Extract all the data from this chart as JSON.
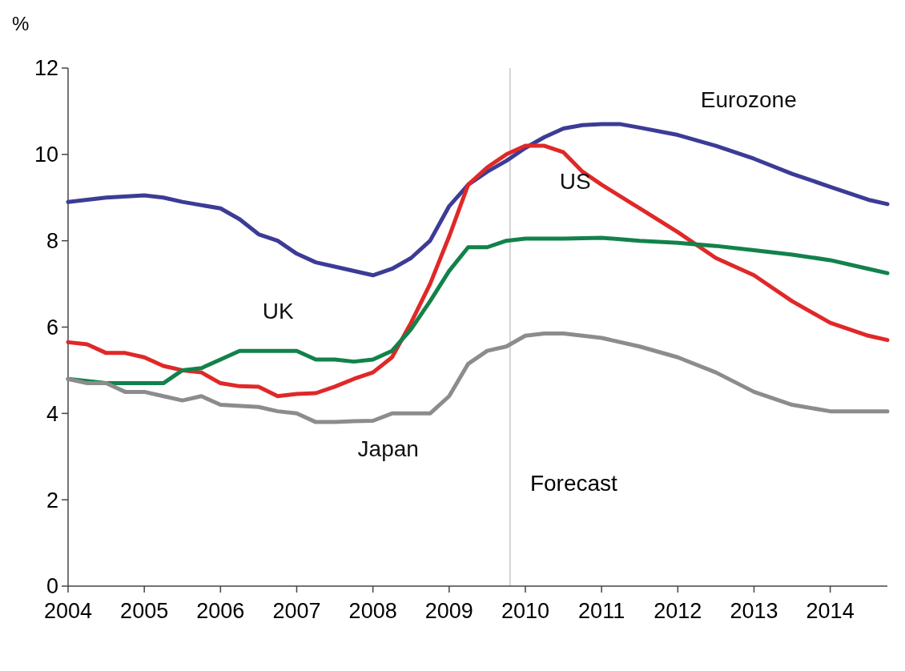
{
  "chart_data": {
    "type": "line",
    "ylabel": "%",
    "xlim": [
      2004,
      2014.75
    ],
    "xticks": [
      2004,
      2005,
      2006,
      2007,
      2008,
      2009,
      2010,
      2011,
      2012,
      2013,
      2014
    ],
    "ylim": [
      0,
      12
    ],
    "yticks": [
      0,
      2,
      4,
      6,
      8,
      10,
      12
    ],
    "grid": false,
    "legend": false,
    "marker": "none",
    "line_style": "solid",
    "ref_lines": [
      {
        "axis": "x",
        "value": 2009.8,
        "label": "Forecast",
        "color": "#c8c8c8"
      }
    ],
    "series": [
      {
        "name": "Eurozone",
        "color": "#3c3c96",
        "x": [
          2004,
          2004.5,
          2005,
          2005.25,
          2005.5,
          2006,
          2006.25,
          2006.5,
          2006.75,
          2007,
          2007.25,
          2007.5,
          2008,
          2008.25,
          2008.5,
          2008.75,
          2009,
          2009.25,
          2009.5,
          2009.75,
          2010,
          2010.25,
          2010.5,
          2010.75,
          2011,
          2011.25,
          2011.5,
          2012,
          2012.5,
          2013,
          2013.5,
          2014,
          2014.5,
          2014.75
        ],
        "values": [
          8.9,
          9.0,
          9.05,
          9.0,
          8.9,
          8.75,
          8.5,
          8.15,
          8.0,
          7.7,
          7.5,
          7.4,
          7.2,
          7.35,
          7.6,
          8.0,
          8.8,
          9.3,
          9.6,
          9.85,
          10.15,
          10.4,
          10.6,
          10.68,
          10.7,
          10.7,
          10.62,
          10.45,
          10.2,
          9.9,
          9.55,
          9.25,
          8.95,
          8.85
        ]
      },
      {
        "name": "US",
        "color": "#e02828",
        "x": [
          2004,
          2004.25,
          2004.5,
          2004.75,
          2005,
          2005.25,
          2005.5,
          2005.75,
          2006,
          2006.25,
          2006.5,
          2006.75,
          2007,
          2007.25,
          2007.5,
          2007.75,
          2008,
          2008.25,
          2008.5,
          2008.75,
          2009,
          2009.25,
          2009.5,
          2009.75,
          2010,
          2010.25,
          2010.5,
          2010.75,
          2011,
          2011.5,
          2012,
          2012.5,
          2013,
          2013.25,
          2013.5,
          2014,
          2014.5,
          2014.75
        ],
        "values": [
          5.65,
          5.6,
          5.4,
          5.4,
          5.3,
          5.1,
          5.0,
          4.95,
          4.7,
          4.63,
          4.62,
          4.4,
          4.45,
          4.47,
          4.62,
          4.8,
          4.95,
          5.3,
          6.1,
          7.0,
          8.1,
          9.3,
          9.7,
          10.0,
          10.2,
          10.2,
          10.05,
          9.6,
          9.3,
          8.75,
          8.2,
          7.6,
          7.2,
          6.9,
          6.6,
          6.1,
          5.8,
          5.7
        ]
      },
      {
        "name": "UK",
        "color": "#12824a",
        "x": [
          2004,
          2004.5,
          2005,
          2005.25,
          2005.5,
          2005.75,
          2006,
          2006.25,
          2006.5,
          2007,
          2007.25,
          2007.5,
          2007.75,
          2008,
          2008.25,
          2008.5,
          2008.75,
          2009,
          2009.25,
          2009.5,
          2009.75,
          2010,
          2010.5,
          2011,
          2011.5,
          2012,
          2012.5,
          2013,
          2013.5,
          2014,
          2014.5,
          2014.75
        ],
        "values": [
          4.8,
          4.7,
          4.7,
          4.7,
          5.0,
          5.05,
          5.25,
          5.45,
          5.45,
          5.45,
          5.25,
          5.25,
          5.2,
          5.25,
          5.45,
          5.95,
          6.6,
          7.3,
          7.85,
          7.85,
          8.0,
          8.05,
          8.05,
          8.07,
          8.0,
          7.95,
          7.88,
          7.78,
          7.68,
          7.55,
          7.35,
          7.25
        ]
      },
      {
        "name": "Japan",
        "color": "#8c8c8c",
        "x": [
          2004,
          2004.25,
          2004.5,
          2004.75,
          2005,
          2005.25,
          2005.5,
          2005.75,
          2006,
          2006.5,
          2006.75,
          2007,
          2007.25,
          2007.5,
          2007.75,
          2008,
          2008.25,
          2008.5,
          2008.75,
          2009,
          2009.25,
          2009.5,
          2009.75,
          2010,
          2010.25,
          2010.5,
          2011,
          2011.5,
          2012,
          2012.5,
          2013,
          2013.5,
          2014,
          2014.5,
          2014.75
        ],
        "values": [
          4.8,
          4.7,
          4.7,
          4.5,
          4.5,
          4.4,
          4.3,
          4.4,
          4.2,
          4.15,
          4.05,
          4.0,
          3.8,
          3.8,
          3.82,
          3.83,
          4.0,
          4.0,
          4.0,
          4.4,
          5.15,
          5.45,
          5.55,
          5.8,
          5.85,
          5.85,
          5.75,
          5.55,
          5.3,
          4.95,
          4.5,
          4.2,
          4.05,
          4.05,
          4.05
        ]
      }
    ]
  }
}
